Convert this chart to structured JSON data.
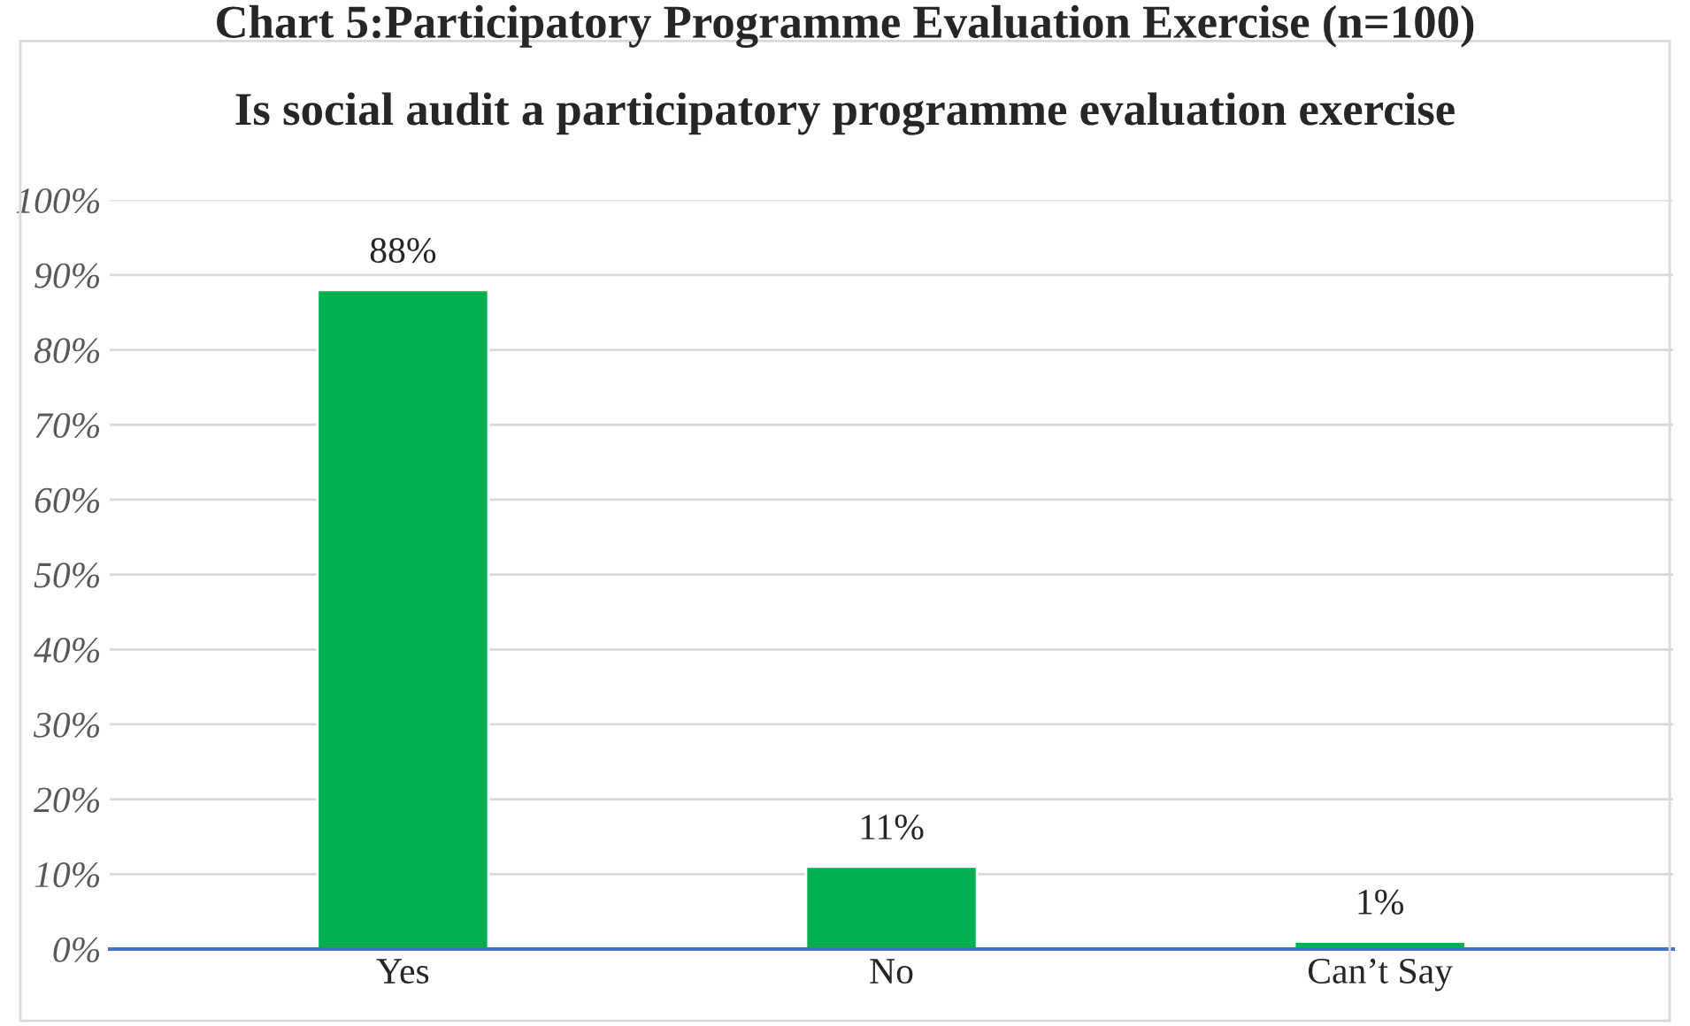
{
  "chart_data": {
    "type": "bar",
    "title": "Chart 5:Participatory Programme Evaluation Exercise (n=100)",
    "subtitle": "Is social audit a participatory programme evaluation exercise",
    "categories": [
      "Yes",
      "No",
      "Can’t Say"
    ],
    "values": [
      88,
      11,
      1
    ],
    "color": "#00b050",
    "value_labels": [
      "88%",
      "11%",
      "1%"
    ],
    "ylim": [
      0,
      100
    ],
    "yticks": [
      {
        "value": 0,
        "label": "0%"
      },
      {
        "value": 10,
        "label": "10%"
      },
      {
        "value": 20,
        "label": "20%"
      },
      {
        "value": 30,
        "label": "30%"
      },
      {
        "value": 40,
        "label": "40%"
      },
      {
        "value": 50,
        "label": "50%"
      },
      {
        "value": 60,
        "label": "60%"
      },
      {
        "value": 70,
        "label": "70%"
      },
      {
        "value": 80,
        "label": "80%"
      },
      {
        "value": 90,
        "label": "90%"
      },
      {
        "value": 100,
        "label": "100%"
      }
    ],
    "grid": "y"
  }
}
